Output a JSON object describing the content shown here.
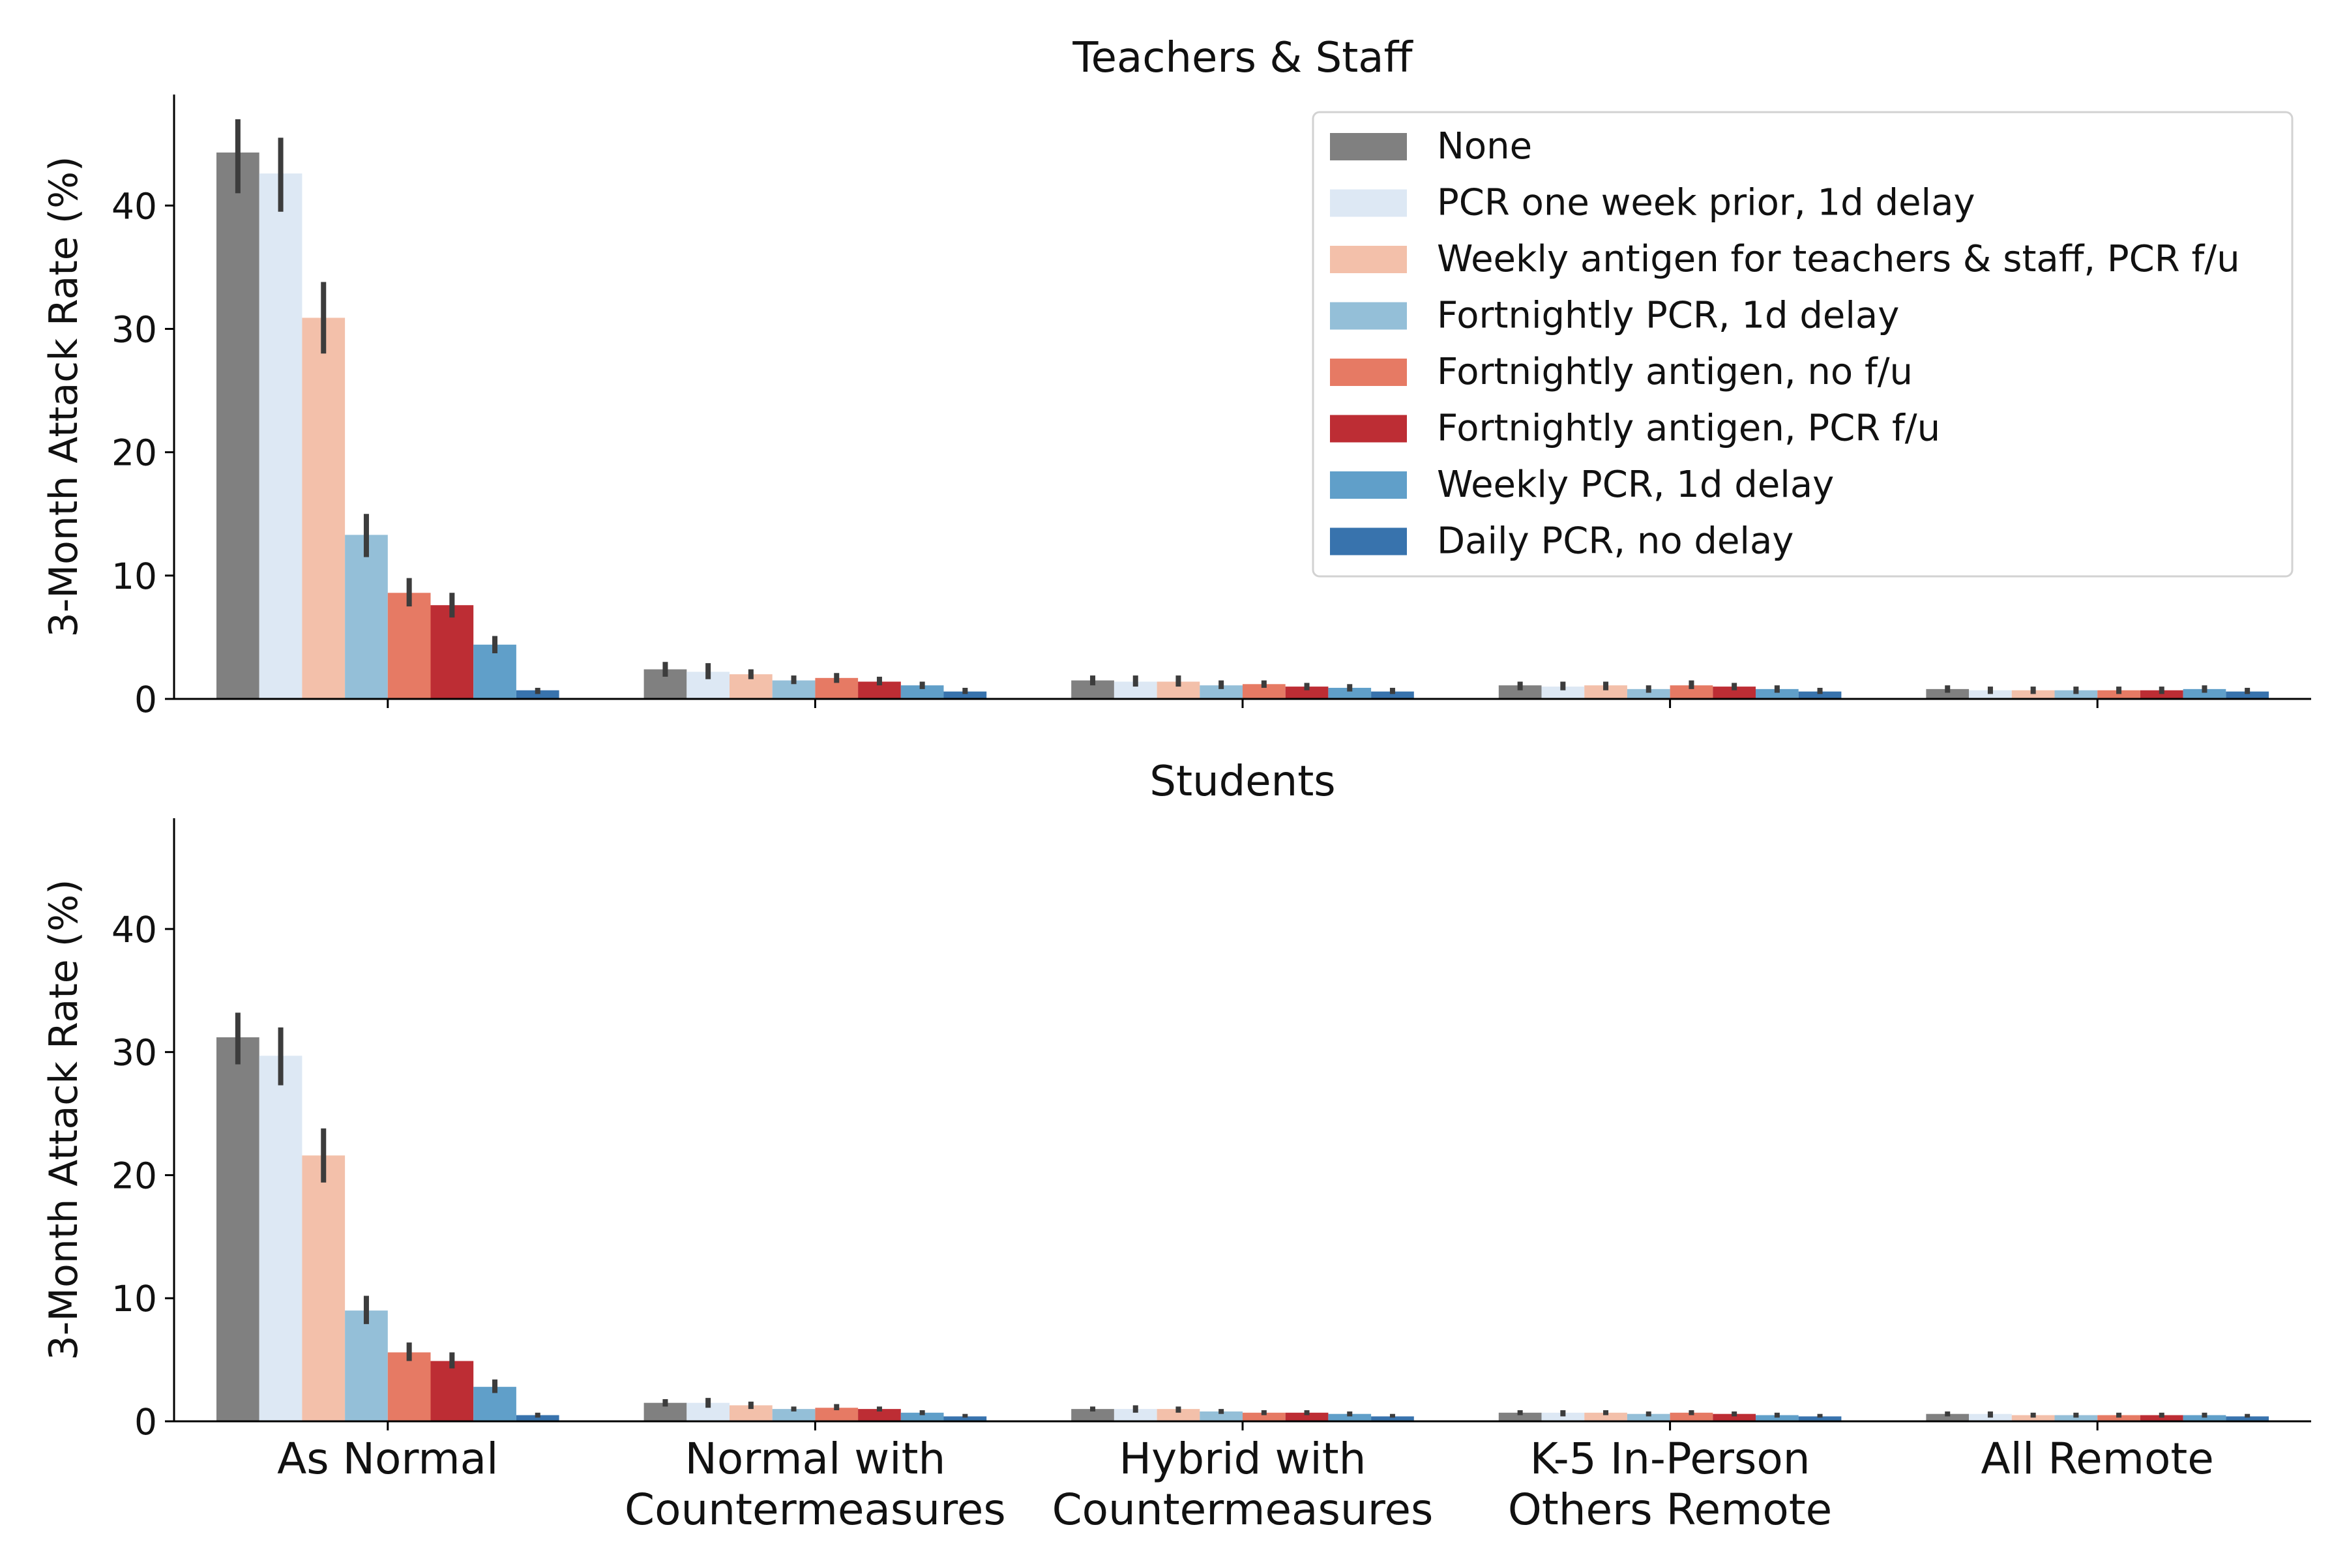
{
  "chart_data": [
    {
      "type": "bar",
      "title": "Teachers & Staff",
      "ylabel": "3-Month Attack Rate (%)",
      "xlabel": "",
      "ylim": [
        0,
        49
      ],
      "yticks": [
        0,
        10,
        20,
        30,
        40
      ],
      "grid": false,
      "legend": "top-right",
      "categories": [
        "As Normal",
        "Normal with\nCountermeasures",
        "Hybrid with\nCountermeasures",
        "K-5 In-Person\nOthers Remote",
        "All Remote"
      ],
      "series": [
        {
          "name": "None",
          "color": "#808080",
          "values": [
            44.3,
            2.4,
            1.5,
            1.1,
            0.8
          ],
          "err": [
            [
              41.0,
              47.0
            ],
            [
              1.8,
              3.0
            ],
            [
              1.1,
              1.9
            ],
            [
              0.7,
              1.4
            ],
            [
              0.5,
              1.1
            ]
          ]
        },
        {
          "name": "PCR one week prior, 1d delay",
          "color": "#dde8f4",
          "values": [
            42.6,
            2.2,
            1.4,
            1.0,
            0.7
          ],
          "err": [
            [
              39.5,
              45.5
            ],
            [
              1.6,
              2.9
            ],
            [
              1.0,
              1.9
            ],
            [
              0.7,
              1.4
            ],
            [
              0.4,
              1.0
            ]
          ]
        },
        {
          "name": "Weekly antigen for teachers & staff, PCR f/u",
          "color": "#f3c0aa",
          "values": [
            30.9,
            2.0,
            1.4,
            1.1,
            0.7
          ],
          "err": [
            [
              28.0,
              33.8
            ],
            [
              1.6,
              2.4
            ],
            [
              1.0,
              1.9
            ],
            [
              0.7,
              1.4
            ],
            [
              0.4,
              1.0
            ]
          ]
        },
        {
          "name": "Fortnightly PCR, 1d delay",
          "color": "#94bfd8",
          "values": [
            13.3,
            1.5,
            1.1,
            0.8,
            0.7
          ],
          "err": [
            [
              11.5,
              15.0
            ],
            [
              1.2,
              1.9
            ],
            [
              0.8,
              1.5
            ],
            [
              0.5,
              1.1
            ],
            [
              0.4,
              1.0
            ]
          ]
        },
        {
          "name": "Fortnightly antigen, no f/u",
          "color": "#e67a64",
          "values": [
            8.6,
            1.7,
            1.2,
            1.1,
            0.7
          ],
          "err": [
            [
              7.5,
              9.8
            ],
            [
              1.3,
              2.1
            ],
            [
              0.9,
              1.5
            ],
            [
              0.8,
              1.5
            ],
            [
              0.4,
              1.0
            ]
          ]
        },
        {
          "name": "Fortnightly antigen, PCR f/u",
          "color": "#bd2d34",
          "values": [
            7.6,
            1.4,
            1.0,
            1.0,
            0.7
          ],
          "err": [
            [
              6.6,
              8.6
            ],
            [
              1.1,
              1.8
            ],
            [
              0.7,
              1.3
            ],
            [
              0.7,
              1.3
            ],
            [
              0.4,
              1.0
            ]
          ]
        },
        {
          "name": "Weekly PCR, 1d delay",
          "color": "#609fc9",
          "values": [
            4.4,
            1.1,
            0.9,
            0.8,
            0.8
          ],
          "err": [
            [
              3.7,
              5.1
            ],
            [
              0.8,
              1.4
            ],
            [
              0.6,
              1.2
            ],
            [
              0.5,
              1.1
            ],
            [
              0.5,
              1.1
            ]
          ]
        },
        {
          "name": "Daily PCR, no delay",
          "color": "#3873ad",
          "values": [
            0.7,
            0.6,
            0.6,
            0.6,
            0.6
          ],
          "err": [
            [
              0.4,
              0.9
            ],
            [
              0.4,
              0.9
            ],
            [
              0.4,
              0.9
            ],
            [
              0.4,
              0.9
            ],
            [
              0.4,
              0.9
            ]
          ]
        }
      ]
    },
    {
      "type": "bar",
      "title": "Students",
      "ylabel": "3-Month Attack Rate (%)",
      "xlabel": "",
      "ylim": [
        0,
        49
      ],
      "yticks": [
        0,
        10,
        20,
        30,
        40
      ],
      "grid": false,
      "categories": [
        "As Normal",
        "Normal with\nCountermeasures",
        "Hybrid with\nCountermeasures",
        "K-5 In-Person\nOthers Remote",
        "All Remote"
      ],
      "series": [
        {
          "name": "None",
          "color": "#808080",
          "values": [
            31.2,
            1.5,
            1.0,
            0.7,
            0.6
          ],
          "err": [
            [
              29.0,
              33.2
            ],
            [
              1.2,
              1.8
            ],
            [
              0.8,
              1.2
            ],
            [
              0.5,
              0.9
            ],
            [
              0.4,
              0.8
            ]
          ]
        },
        {
          "name": "PCR one week prior, 1d delay",
          "color": "#dde8f4",
          "values": [
            29.7,
            1.5,
            1.0,
            0.7,
            0.6
          ],
          "err": [
            [
              27.3,
              32.0
            ],
            [
              1.1,
              1.9
            ],
            [
              0.7,
              1.3
            ],
            [
              0.4,
              0.9
            ],
            [
              0.3,
              0.8
            ]
          ]
        },
        {
          "name": "Weekly antigen for teachers & staff, PCR f/u",
          "color": "#f3c0aa",
          "values": [
            21.6,
            1.3,
            1.0,
            0.7,
            0.5
          ],
          "err": [
            [
              19.4,
              23.8
            ],
            [
              1.0,
              1.6
            ],
            [
              0.7,
              1.2
            ],
            [
              0.5,
              0.9
            ],
            [
              0.3,
              0.7
            ]
          ]
        },
        {
          "name": "Fortnightly PCR, 1d delay",
          "color": "#94bfd8",
          "values": [
            9.0,
            1.0,
            0.8,
            0.6,
            0.5
          ],
          "err": [
            [
              7.9,
              10.2
            ],
            [
              0.8,
              1.2
            ],
            [
              0.6,
              1.0
            ],
            [
              0.4,
              0.8
            ],
            [
              0.3,
              0.7
            ]
          ]
        },
        {
          "name": "Fortnightly antigen, no f/u",
          "color": "#e67a64",
          "values": [
            5.6,
            1.1,
            0.7,
            0.7,
            0.5
          ],
          "err": [
            [
              4.9,
              6.4
            ],
            [
              0.9,
              1.4
            ],
            [
              0.5,
              0.9
            ],
            [
              0.5,
              0.9
            ],
            [
              0.3,
              0.7
            ]
          ]
        },
        {
          "name": "Fortnightly antigen, PCR f/u",
          "color": "#bd2d34",
          "values": [
            4.9,
            1.0,
            0.7,
            0.6,
            0.5
          ],
          "err": [
            [
              4.3,
              5.6
            ],
            [
              0.8,
              1.2
            ],
            [
              0.5,
              0.9
            ],
            [
              0.4,
              0.8
            ],
            [
              0.3,
              0.7
            ]
          ]
        },
        {
          "name": "Weekly PCR, 1d delay",
          "color": "#609fc9",
          "values": [
            2.8,
            0.7,
            0.6,
            0.5,
            0.5
          ],
          "err": [
            [
              2.3,
              3.4
            ],
            [
              0.5,
              0.9
            ],
            [
              0.4,
              0.8
            ],
            [
              0.3,
              0.7
            ],
            [
              0.3,
              0.7
            ]
          ]
        },
        {
          "name": "Daily PCR, no delay",
          "color": "#3873ad",
          "values": [
            0.5,
            0.4,
            0.4,
            0.4,
            0.4
          ],
          "err": [
            [
              0.3,
              0.7
            ],
            [
              0.3,
              0.6
            ],
            [
              0.3,
              0.6
            ],
            [
              0.3,
              0.6
            ],
            [
              0.3,
              0.6
            ]
          ]
        }
      ]
    }
  ]
}
